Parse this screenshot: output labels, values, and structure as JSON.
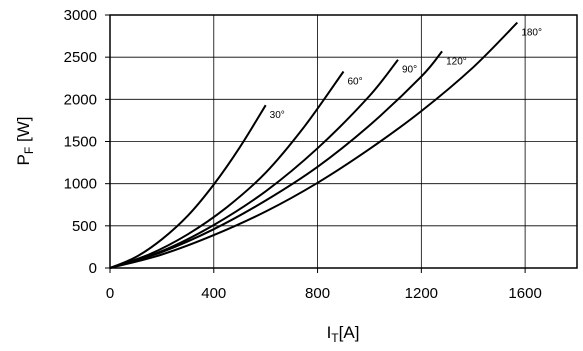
{
  "chart_data": {
    "type": "line",
    "xlabel": {
      "main": "I",
      "sub": "T",
      "unit": "[A]"
    },
    "ylabel": {
      "main": "P",
      "sub": "F",
      "unit": " [W]"
    },
    "xlim": [
      0,
      1800
    ],
    "ylim": [
      0,
      3000
    ],
    "xticks": [
      0,
      400,
      800,
      1200,
      1600
    ],
    "yticks": [
      0,
      500,
      1000,
      1500,
      2000,
      2500,
      3000
    ],
    "grid": true,
    "series": [
      {
        "name": "30°",
        "x": [
          0,
          100,
          200,
          300,
          400,
          500,
          600
        ],
        "y": [
          0,
          130,
          340,
          620,
          990,
          1430,
          1930
        ]
      },
      {
        "name": "60°",
        "x": [
          0,
          150,
          300,
          450,
          600,
          750,
          900
        ],
        "y": [
          0,
          160,
          400,
          720,
          1130,
          1680,
          2330
        ]
      },
      {
        "name": "90°",
        "x": [
          0,
          200,
          400,
          600,
          800,
          1000,
          1110
        ],
        "y": [
          0,
          200,
          510,
          910,
          1420,
          2040,
          2470
        ]
      },
      {
        "name": "120°",
        "x": [
          0,
          200,
          400,
          600,
          800,
          1000,
          1200,
          1280
        ],
        "y": [
          0,
          190,
          460,
          800,
          1200,
          1690,
          2270,
          2570
        ]
      },
      {
        "name": "180°",
        "x": [
          0,
          200,
          400,
          600,
          800,
          1000,
          1200,
          1400,
          1570
        ],
        "y": [
          0,
          160,
          390,
          670,
          1010,
          1410,
          1860,
          2380,
          2910
        ]
      }
    ]
  }
}
